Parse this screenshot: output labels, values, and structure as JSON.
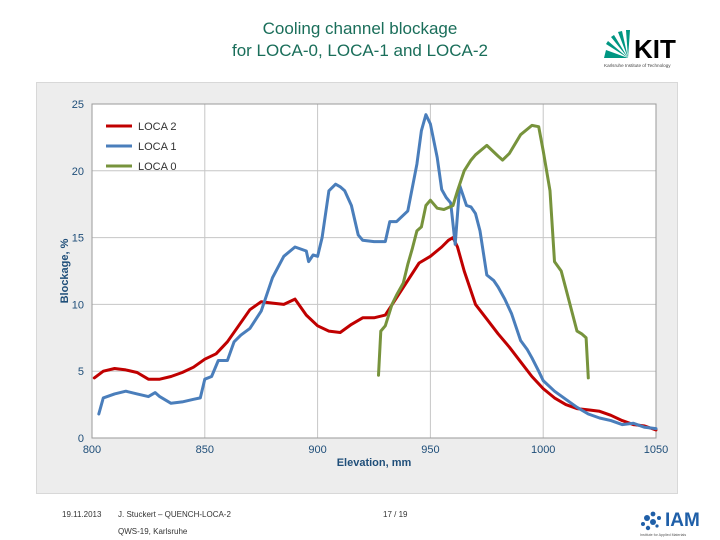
{
  "slide": {
    "title_line1": "Cooling channel blockage",
    "title_line2": "for LOCA-0, LOCA-1 and LOCA-2",
    "kit_logo_text": "KIT",
    "kit_logo_sub": "Karlsruhe Institute of Technology",
    "iam_logo_text": "IAM",
    "iam_logo_sub": "Institute for Applied Materials",
    "footer_date": "19.11.2013",
    "footer_author": "J. Stuckert – QUENCH-LOCA-2",
    "footer_venue": "QWS-19, Karlsruhe",
    "footer_page": "17 / 19",
    "colors": {
      "title": "#1a6e5a",
      "kit_green": "#009682",
      "iam_blue": "#1f5fa8"
    }
  },
  "chart_data": {
    "type": "line",
    "xlabel": "Elevation, mm",
    "ylabel": "Blockage, %",
    "xlim": [
      800,
      1050
    ],
    "ylim": [
      0,
      25
    ],
    "xticks": [
      800,
      850,
      900,
      950,
      1000,
      1050
    ],
    "yticks": [
      0,
      5,
      10,
      15,
      20,
      25
    ],
    "grid": true,
    "legend_position": "top-left",
    "series": [
      {
        "name": "LOCA 2",
        "color": "#c00000",
        "x": [
          801,
          805,
          810,
          815,
          820,
          825,
          830,
          835,
          840,
          845,
          850,
          855,
          860,
          865,
          870,
          875,
          880,
          885,
          890,
          895,
          900,
          905,
          910,
          915,
          920,
          925,
          930,
          935,
          940,
          945,
          950,
          955,
          958,
          960,
          962,
          965,
          970,
          975,
          980,
          985,
          990,
          995,
          1000,
          1005,
          1010,
          1015,
          1020,
          1025,
          1030,
          1035,
          1040,
          1045,
          1050
        ],
        "y": [
          4.5,
          5.0,
          5.2,
          5.1,
          4.9,
          4.4,
          4.4,
          4.6,
          4.9,
          5.3,
          5.9,
          6.3,
          7.2,
          8.4,
          9.6,
          10.2,
          10.1,
          10.0,
          10.4,
          9.2,
          8.4,
          8.0,
          7.9,
          8.5,
          9.0,
          9.0,
          9.2,
          10.5,
          11.8,
          13.1,
          13.6,
          14.3,
          14.8,
          15.0,
          14.3,
          12.5,
          10.0,
          8.9,
          7.8,
          6.8,
          5.7,
          4.6,
          3.7,
          3.0,
          2.5,
          2.2,
          2.1,
          2.0,
          1.7,
          1.3,
          1.0,
          0.9,
          0.6
        ]
      },
      {
        "name": "LOCA 1",
        "color": "#4a7ebb",
        "x": [
          803,
          805,
          810,
          815,
          820,
          825,
          828,
          830,
          835,
          840,
          845,
          848,
          850,
          853,
          856,
          860,
          863,
          866,
          870,
          875,
          880,
          885,
          890,
          895,
          896,
          898,
          900,
          902,
          905,
          908,
          910,
          912,
          915,
          918,
          920,
          925,
          930,
          932,
          935,
          940,
          944,
          946,
          948,
          950,
          953,
          955,
          957,
          959,
          961,
          963,
          966,
          968,
          970,
          972,
          975,
          978,
          980,
          983,
          986,
          990,
          993,
          995,
          998,
          1000,
          1005,
          1010,
          1015,
          1020,
          1025,
          1030,
          1035,
          1040,
          1045,
          1050
        ],
        "y": [
          1.8,
          3.0,
          3.3,
          3.5,
          3.3,
          3.1,
          3.4,
          3.1,
          2.6,
          2.7,
          2.9,
          3.0,
          4.4,
          4.6,
          5.8,
          5.8,
          7.2,
          7.7,
          8.2,
          9.5,
          12.0,
          13.6,
          14.3,
          14.0,
          13.2,
          13.7,
          13.6,
          15.0,
          18.5,
          19.0,
          18.8,
          18.5,
          17.4,
          15.2,
          14.8,
          14.7,
          14.7,
          16.2,
          16.2,
          17.0,
          20.5,
          23.0,
          24.2,
          23.5,
          21.0,
          18.6,
          18.0,
          17.6,
          14.5,
          18.9,
          17.4,
          17.3,
          16.8,
          15.5,
          12.2,
          11.8,
          11.3,
          10.4,
          9.3,
          7.3,
          6.6,
          6.0,
          5.0,
          4.3,
          3.5,
          2.9,
          2.3,
          1.8,
          1.5,
          1.3,
          1.0,
          1.1,
          0.8,
          0.7
        ]
      },
      {
        "name": "LOCA 0",
        "color": "#77933c",
        "x": [
          927,
          928,
          930,
          933,
          935,
          938,
          940,
          942,
          944,
          946,
          948,
          950,
          953,
          956,
          960,
          962,
          965,
          968,
          970,
          975,
          980,
          982,
          985,
          990,
          995,
          998,
          1000,
          1003,
          1005,
          1008,
          1010,
          1015,
          1017,
          1019,
          1020
        ],
        "y": [
          4.7,
          8.0,
          8.4,
          10.0,
          10.7,
          11.6,
          13.0,
          14.2,
          15.5,
          15.8,
          17.4,
          17.8,
          17.2,
          17.1,
          17.4,
          18.5,
          20.0,
          20.8,
          21.2,
          21.9,
          21.1,
          20.8,
          21.3,
          22.7,
          23.4,
          23.3,
          21.5,
          18.5,
          13.2,
          12.5,
          11.2,
          8.0,
          7.8,
          7.5,
          4.5
        ]
      }
    ]
  }
}
